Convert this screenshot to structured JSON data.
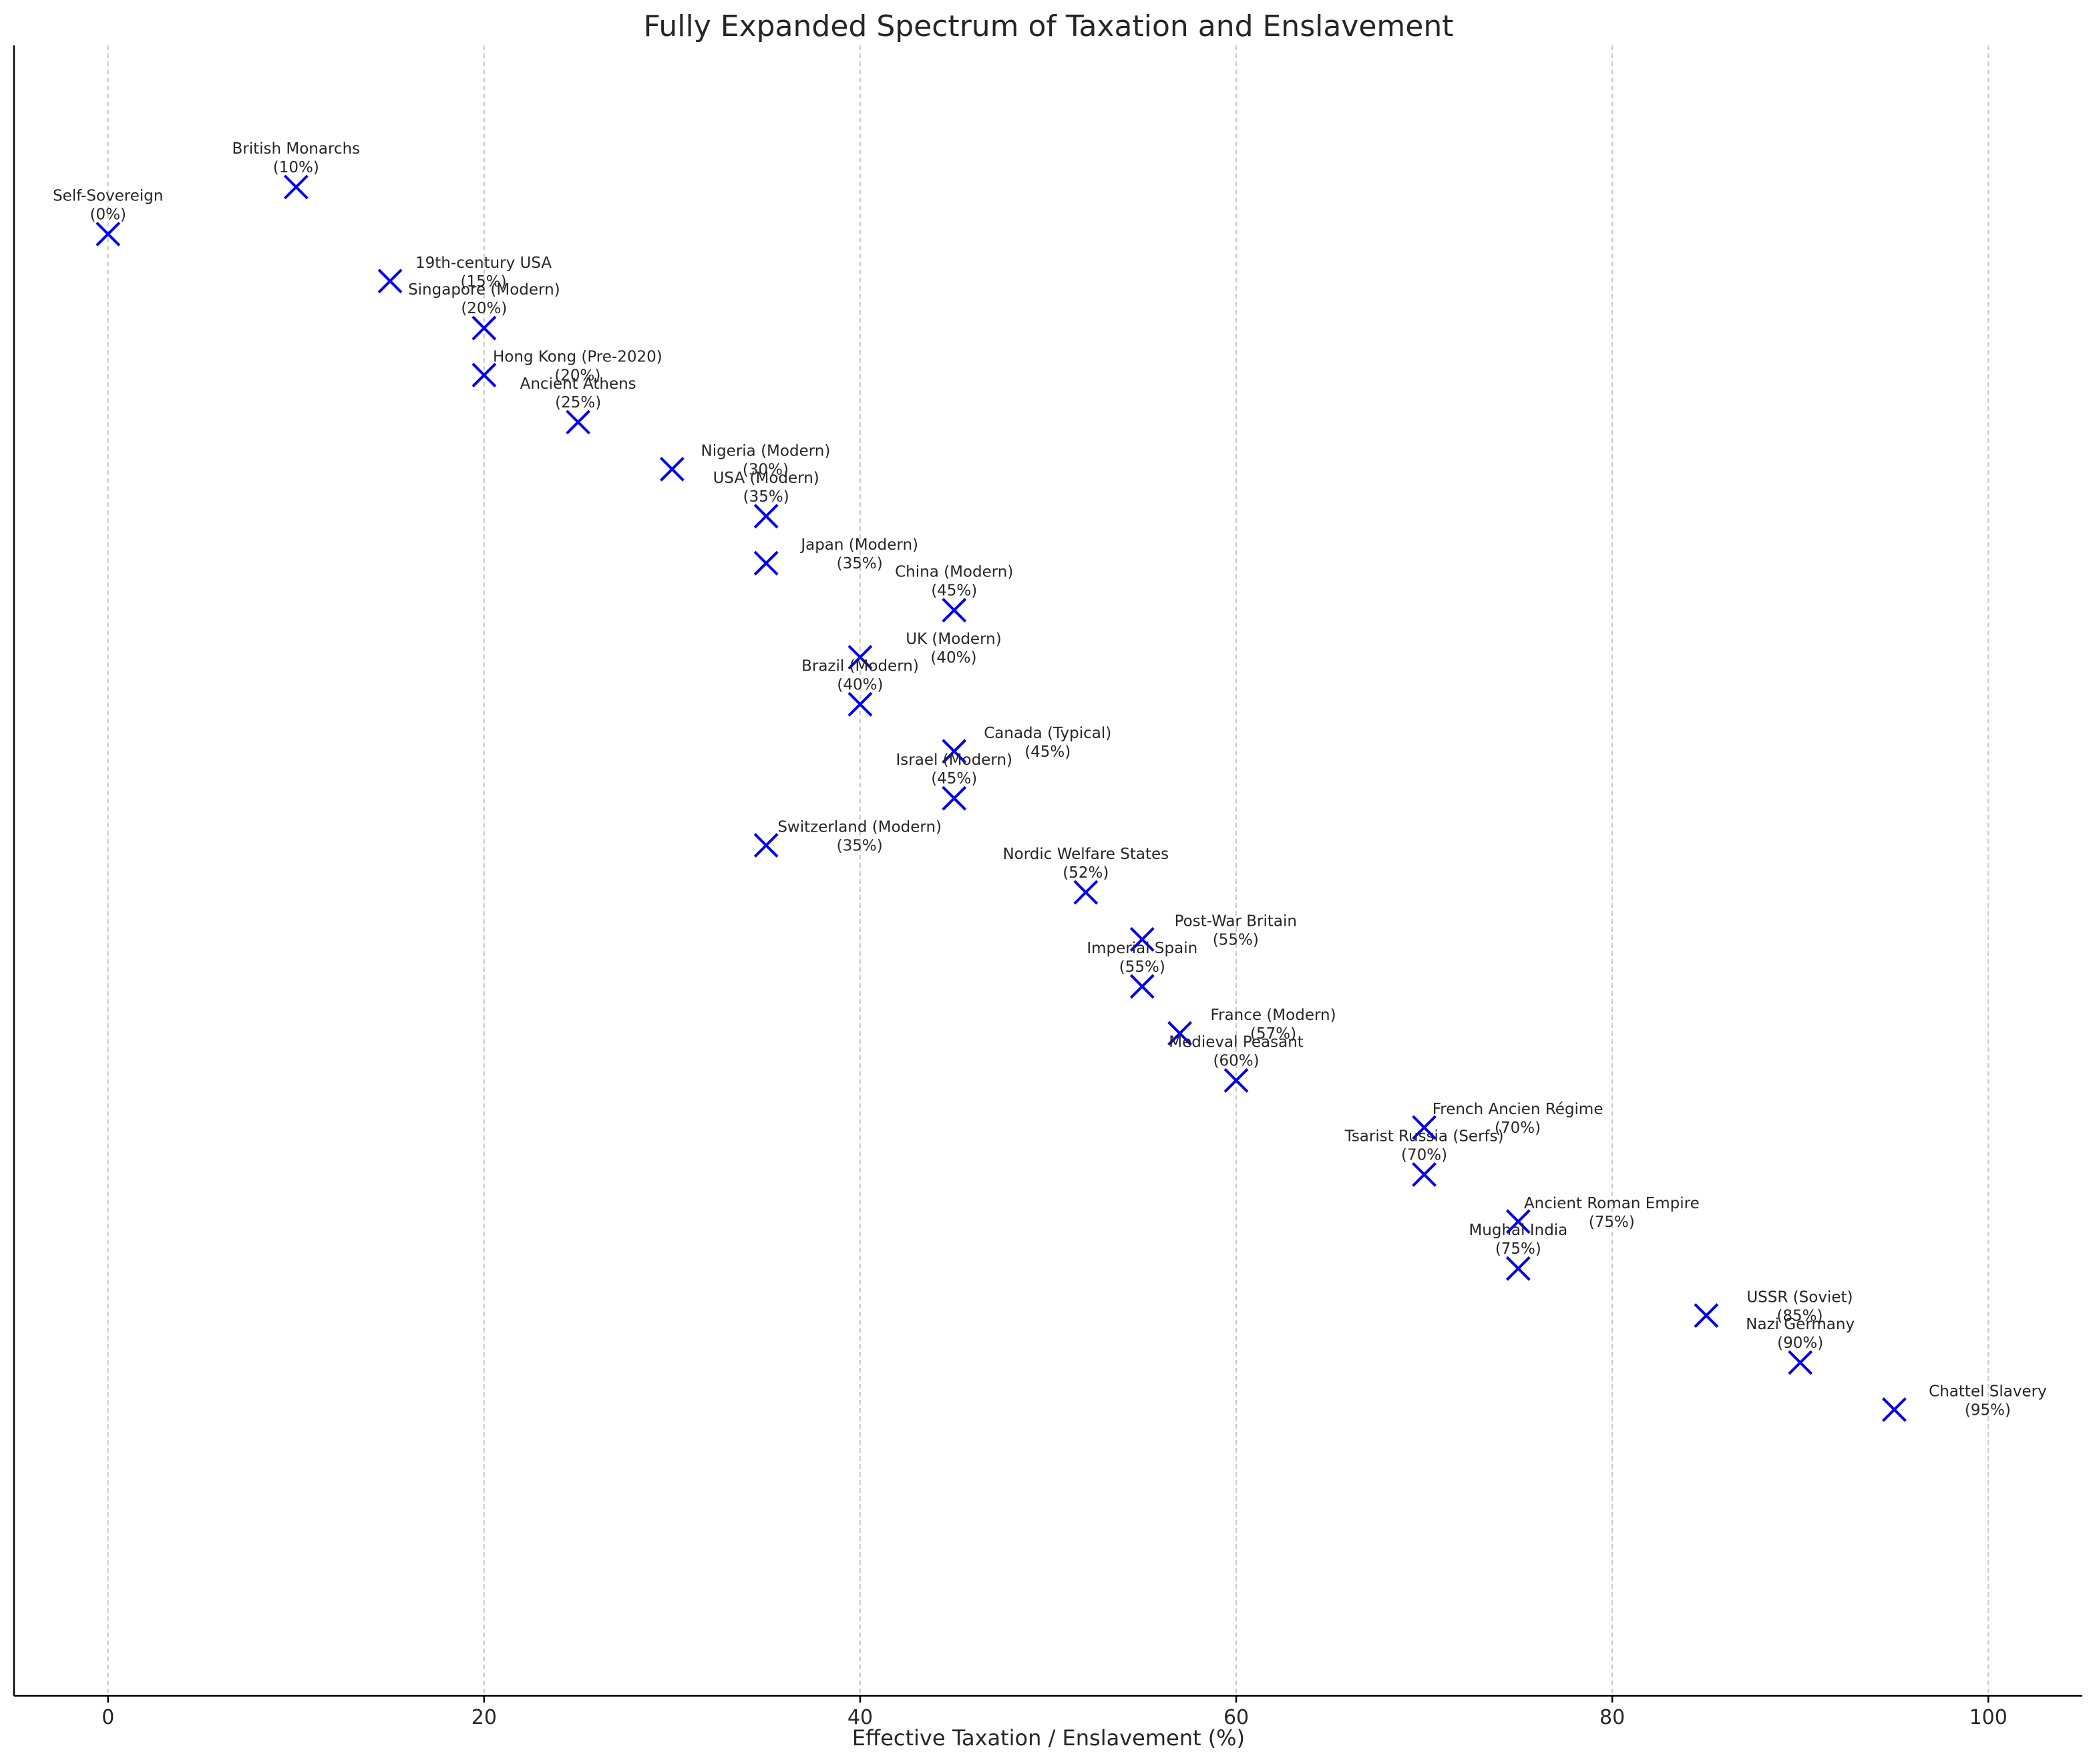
{
  "chart_data": {
    "type": "scatter",
    "title": "Fully Expanded Spectrum of Taxation and Enslavement",
    "xlabel": "Effective Taxation / Enslavement (%)",
    "ylabel": "",
    "xlim": [
      -5,
      105
    ],
    "xticks": [
      0,
      20,
      40,
      60,
      80,
      100
    ],
    "x_tick_labels": [
      "0",
      "20",
      "40",
      "60",
      "80",
      "100"
    ],
    "grid": "vertical dashed",
    "y_ticks_shown": false,
    "marker": "x",
    "marker_color": "#0000ee",
    "points": [
      {
        "name": "Self-Sovereign",
        "x": 0,
        "pct": "(0%)"
      },
      {
        "name": "British Monarchs",
        "x": 10,
        "pct": "(10%)"
      },
      {
        "name": "19th-century USA",
        "x": 15,
        "pct": "(15%)"
      },
      {
        "name": "Singapore (Modern)",
        "x": 20,
        "pct": "(20%)"
      },
      {
        "name": "Hong Kong (Pre-2020)",
        "x": 20,
        "pct": "(20%)"
      },
      {
        "name": "Ancient Athens",
        "x": 25,
        "pct": "(25%)"
      },
      {
        "name": "Nigeria (Modern)",
        "x": 30,
        "pct": "(30%)"
      },
      {
        "name": "USA (Modern)",
        "x": 35,
        "pct": "(35%)"
      },
      {
        "name": "Japan (Modern)",
        "x": 35,
        "pct": "(35%)"
      },
      {
        "name": "China (Modern)",
        "x": 45,
        "pct": "(45%)"
      },
      {
        "name": "UK (Modern)",
        "x": 40,
        "pct": "(40%)"
      },
      {
        "name": "Brazil (Modern)",
        "x": 40,
        "pct": "(40%)"
      },
      {
        "name": "Canada (Typical)",
        "x": 45,
        "pct": "(45%)"
      },
      {
        "name": "Israel (Modern)",
        "x": 45,
        "pct": "(45%)"
      },
      {
        "name": "Switzerland (Modern)",
        "x": 35,
        "pct": "(35%)"
      },
      {
        "name": "Nordic Welfare States",
        "x": 52,
        "pct": "(52%)"
      },
      {
        "name": "Post-War Britain",
        "x": 55,
        "pct": "(55%)"
      },
      {
        "name": "Imperial Spain",
        "x": 55,
        "pct": "(55%)"
      },
      {
        "name": "France (Modern)",
        "x": 57,
        "pct": "(57%)"
      },
      {
        "name": "Medieval Peasant",
        "x": 60,
        "pct": "(60%)"
      },
      {
        "name": "French Ancien Régime",
        "x": 70,
        "pct": "(70%)"
      },
      {
        "name": "Tsarist Russia (Serfs)",
        "x": 70,
        "pct": "(70%)"
      },
      {
        "name": "Ancient Roman Empire",
        "x": 75,
        "pct": "(75%)"
      },
      {
        "name": "Mughal India",
        "x": 75,
        "pct": "(75%)"
      },
      {
        "name": "USSR (Soviet)",
        "x": 85,
        "pct": "(85%)"
      },
      {
        "name": "Nazi Germany",
        "x": 90,
        "pct": "(90%)"
      },
      {
        "name": "Chattel Slavery",
        "x": 95,
        "pct": "(95%)"
      }
    ]
  }
}
